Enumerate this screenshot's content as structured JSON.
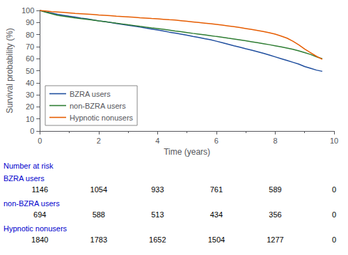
{
  "chart_data": {
    "type": "line",
    "xlabel": "Time (years)",
    "ylabel": "Survival probability (%)",
    "xlim": [
      0,
      10
    ],
    "ylim": [
      0,
      100
    ],
    "xticks": [
      0,
      2,
      4,
      6,
      8,
      10
    ],
    "yticks": [
      0,
      10,
      20,
      30,
      40,
      50,
      60,
      70,
      80,
      90,
      100
    ],
    "grid": false,
    "legend": "lower left",
    "x": [
      0,
      0.2,
      0.4,
      0.6,
      0.8,
      1.0,
      1.2,
      1.4,
      1.6,
      1.8,
      2.0,
      2.2,
      2.4,
      2.6,
      2.8,
      3.0,
      3.2,
      3.4,
      3.6,
      3.8,
      4.0,
      4.2,
      4.4,
      4.6,
      4.8,
      5.0,
      5.2,
      5.4,
      5.6,
      5.8,
      6.0,
      6.2,
      6.4,
      6.6,
      6.8,
      7.0,
      7.2,
      7.4,
      7.6,
      7.8,
      8.0,
      8.2,
      8.4,
      8.6,
      8.8,
      9.0,
      9.2,
      9.4,
      9.6
    ],
    "series": [
      {
        "name": "BZRA users",
        "color": "#1f4e9e",
        "values": [
          100,
          98.8,
          97.8,
          96.8,
          96.0,
          95.2,
          94.5,
          93.7,
          93.0,
          92.2,
          91.4,
          90.7,
          90.0,
          89.2,
          88.5,
          87.7,
          87.0,
          86.2,
          85.4,
          84.6,
          83.8,
          83.0,
          82.0,
          81.2,
          80.4,
          79.5,
          78.5,
          77.6,
          76.6,
          75.7,
          74.5,
          73.3,
          72.0,
          70.7,
          69.5,
          68.2,
          67.0,
          65.8,
          64.5,
          63.0,
          61.5,
          60.0,
          58.5,
          57.0,
          55.5,
          53.5,
          52.0,
          50.5,
          49.5
        ]
      },
      {
        "name": "non-BZRA users",
        "color": "#2e7d32",
        "values": [
          100,
          98.5,
          97.2,
          96.0,
          95.2,
          94.5,
          93.8,
          93.2,
          92.6,
          92.0,
          91.3,
          90.7,
          90.1,
          89.4,
          88.8,
          88.1,
          87.5,
          86.8,
          86.2,
          85.5,
          85.0,
          84.4,
          83.7,
          83.0,
          82.4,
          81.7,
          81.0,
          80.4,
          79.8,
          79.1,
          78.4,
          77.8,
          77.0,
          76.3,
          75.6,
          74.8,
          74.0,
          73.2,
          72.4,
          71.6,
          70.7,
          69.8,
          68.8,
          67.8,
          66.5,
          65.0,
          63.5,
          61.5,
          60.0
        ]
      },
      {
        "name": "Hypnotic nonusers",
        "color": "#e65c00",
        "values": [
          100,
          99.5,
          99.0,
          98.7,
          98.4,
          98.0,
          97.6,
          97.3,
          97.0,
          96.7,
          96.3,
          96.0,
          95.7,
          95.3,
          95.0,
          94.7,
          94.4,
          94.0,
          93.7,
          93.3,
          93.0,
          92.7,
          92.3,
          92.0,
          91.5,
          91.0,
          90.5,
          90.0,
          89.5,
          89.0,
          88.4,
          87.8,
          87.2,
          86.5,
          85.8,
          85.0,
          84.2,
          83.4,
          82.5,
          81.5,
          80.3,
          78.8,
          77.0,
          74.5,
          71.5,
          68.0,
          65.0,
          62.0,
          59.5
        ]
      }
    ],
    "risk_table": {
      "title": "Number at risk",
      "color": "#0000cc",
      "times": [
        0,
        2,
        4,
        6,
        8,
        10
      ],
      "rows": [
        {
          "name": "BZRA users",
          "values": [
            1146,
            1054,
            933,
            761,
            589,
            0
          ]
        },
        {
          "name": "non-BZRA users",
          "values": [
            694,
            588,
            513,
            434,
            356,
            0
          ]
        },
        {
          "name": "Hypnotic nonusers",
          "values": [
            1840,
            1783,
            1652,
            1504,
            1277,
            0
          ]
        }
      ]
    }
  }
}
